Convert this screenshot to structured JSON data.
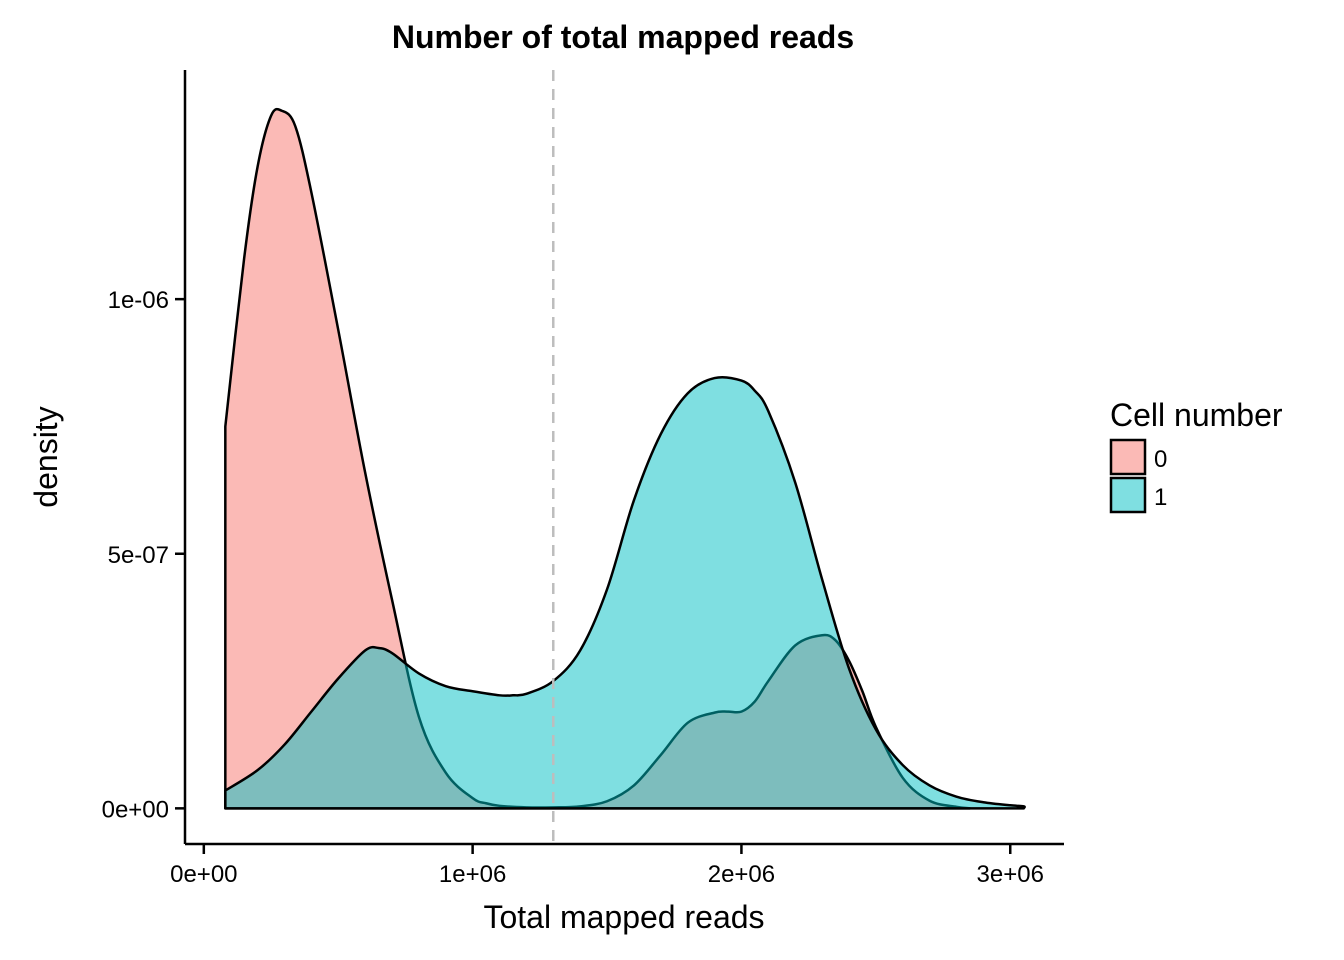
{
  "chart_data": {
    "type": "area",
    "title": "Number of total mapped reads",
    "xlabel": "Total mapped reads",
    "ylabel": "density",
    "xlim": [
      -70000,
      3200000
    ],
    "ylim": [
      -7e-08,
      1.45e-06
    ],
    "x_ticks": [
      {
        "value": 0,
        "label": "0e+00"
      },
      {
        "value": 1000000,
        "label": "1e+06"
      },
      {
        "value": 2000000,
        "label": "2e+06"
      },
      {
        "value": 3000000,
        "label": "3e+06"
      }
    ],
    "y_ticks": [
      {
        "value": 0,
        "label": "0e+00"
      },
      {
        "value": 5e-07,
        "label": "5e-07"
      },
      {
        "value": 1e-06,
        "label": "1e-06"
      }
    ],
    "reference_line": {
      "x": 1300000,
      "style": "dashed",
      "color": "#bdbdbd"
    },
    "grid": false,
    "legend": {
      "title": "Cell number",
      "position": "right"
    },
    "series": [
      {
        "name": "0",
        "color": "#F8766D",
        "x": [
          80000,
          80000,
          150000,
          200000,
          250000,
          290000,
          340000,
          400000,
          500000,
          600000,
          700000,
          800000,
          900000,
          1000000,
          1050000,
          1100000,
          1200000,
          1300000,
          1400000,
          1500000,
          1600000,
          1700000,
          1800000,
          1900000,
          1950000,
          2000000,
          2050000,
          2100000,
          2200000,
          2300000,
          2350000,
          2400000,
          2450000,
          2500000,
          2600000,
          2700000,
          2800000,
          2850000
        ],
        "values": [
          0,
          7.5e-07,
          1.08e-06,
          1.26e-06,
          1.36e-06,
          1.37e-06,
          1.34e-06,
          1.21e-06,
          9.4e-07,
          6.6e-07,
          4.1e-07,
          1.8e-07,
          7e-08,
          2e-08,
          1e-08,
          5e-09,
          2e-09,
          2e-09,
          4e-09,
          1.4e-08,
          4.5e-08,
          1.05e-07,
          1.68e-07,
          1.88e-07,
          1.9e-07,
          1.9e-07,
          2.1e-07,
          2.5e-07,
          3.2e-07,
          3.4e-07,
          3.3e-07,
          2.9e-07,
          2.3e-07,
          1.6e-07,
          6e-08,
          1.5e-08,
          3e-09,
          0
        ]
      },
      {
        "name": "1",
        "color": "#00BFC4",
        "x": [
          80000,
          80000,
          200000,
          300000,
          400000,
          500000,
          600000,
          650000,
          700000,
          800000,
          900000,
          1000000,
          1100000,
          1150000,
          1200000,
          1300000,
          1400000,
          1500000,
          1600000,
          1700000,
          1800000,
          1900000,
          2000000,
          2050000,
          2100000,
          2200000,
          2300000,
          2400000,
          2500000,
          2600000,
          2700000,
          2800000,
          2900000,
          3000000,
          3050000,
          3050000
        ],
        "values": [
          0,
          3.5e-08,
          7.5e-08,
          1.25e-07,
          1.9e-07,
          2.55e-07,
          3.1e-07,
          3.15e-07,
          3.05e-07,
          2.65e-07,
          2.4e-07,
          2.3e-07,
          2.22e-07,
          2.22e-07,
          2.25e-07,
          2.5e-07,
          3.1e-07,
          4.3e-07,
          6.05e-07,
          7.35e-07,
          8.15e-07,
          8.45e-07,
          8.4e-07,
          8.2e-07,
          7.8e-07,
          6.4e-07,
          4.5e-07,
          2.75e-07,
          1.55e-07,
          8.5e-08,
          4.5e-08,
          2.3e-08,
          1.2e-08,
          6e-09,
          4e-09,
          0
        ]
      }
    ]
  }
}
